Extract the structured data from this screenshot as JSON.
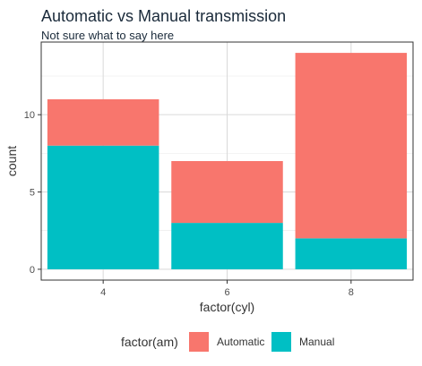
{
  "chart_data": {
    "type": "bar",
    "stacked": true,
    "title": "Automatic vs Manual transmission",
    "subtitle": "Not sure what to say here",
    "xlabel": "factor(cyl)",
    "ylabel": "count",
    "categories": [
      "4",
      "6",
      "8"
    ],
    "series": [
      {
        "name": "Automatic",
        "values": [
          3,
          4,
          12
        ],
        "color": "#F8766D"
      },
      {
        "name": "Manual",
        "values": [
          8,
          3,
          2
        ],
        "color": "#00BFC4"
      }
    ],
    "yticks": [
      0,
      5,
      10
    ],
    "ylim": [
      -0.7,
      14.7
    ],
    "grid": true,
    "legend_title": "factor(am)",
    "legend_position": "bottom"
  }
}
